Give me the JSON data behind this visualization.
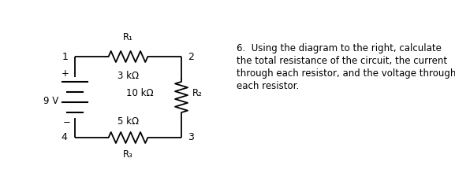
{
  "bg_color": "#ffffff",
  "text_color": "#000000",
  "line_color": "#000000",
  "circuit": {
    "R1_label": "R₁",
    "R1_value": "3 kΩ",
    "R2_label": "R₂",
    "R2_value": "10 kΩ",
    "R3_label": "R₃",
    "R3_value": "5 kΩ",
    "voltage_label": "9 V",
    "node_labels": [
      "1",
      "2",
      "3",
      "4"
    ]
  },
  "problem_text_line1": "6.  Using the diagram to the right, calculate",
  "problem_text_line2": "the total resistance of the circuit, the current",
  "problem_text_line3": "through each resistor, and the voltage through",
  "problem_text_line4": "each resistor.",
  "font_size_circuit": 8.5,
  "font_size_problem": 8.5,
  "lw": 1.3
}
